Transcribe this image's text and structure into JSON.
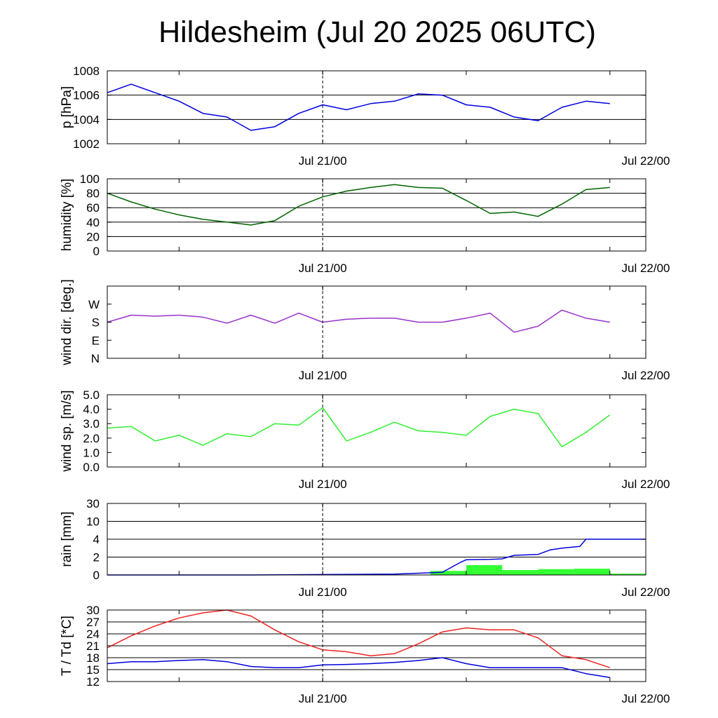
{
  "title": "Hildesheim (Jul 20 2025 06UTC)",
  "x_tick_labels": [
    "Jul 21/00",
    "Jul 22/00"
  ],
  "chart_data": [
    {
      "type": "line",
      "ylabel": "p [hPa]",
      "ylim": [
        1002,
        1008
      ],
      "yticks": [
        1002,
        1004,
        1006,
        1008
      ],
      "grid": true,
      "x": [
        "Jul 20 06:00",
        "Jul 20 08:00",
        "Jul 20 10:00",
        "Jul 20 12:00",
        "Jul 20 14:00",
        "Jul 20 16:00",
        "Jul 20 18:00",
        "Jul 20 20:00",
        "Jul 20 22:00",
        "Jul 21 00:00",
        "Jul 21 02:00",
        "Jul 21 04:00",
        "Jul 21 06:00",
        "Jul 21 08:00",
        "Jul 21 10:00",
        "Jul 21 12:00",
        "Jul 21 14:00",
        "Jul 21 16:00",
        "Jul 21 18:00",
        "Jul 21 20:00",
        "Jul 21 22:00",
        "Jul 22 00:00"
      ],
      "series": [
        {
          "color": "#0000dd",
          "values": [
            1006.2,
            1006.9,
            1006.2,
            1005.5,
            1004.5,
            1004.2,
            1003.1,
            1003.4,
            1004.5,
            1005.2,
            1004.8,
            1005.3,
            1005.5,
            1006.1,
            1006.0,
            1005.2,
            1005.0,
            1004.2,
            1003.9,
            1005.0,
            1005.5,
            1005.3
          ]
        }
      ]
    },
    {
      "type": "line",
      "ylabel": "humidity [%]",
      "ylim": [
        0,
        100
      ],
      "yticks": [
        0,
        20,
        40,
        60,
        80,
        100
      ],
      "grid": true,
      "x": [
        "Jul 20 06:00",
        "Jul 20 08:00",
        "Jul 20 10:00",
        "Jul 20 12:00",
        "Jul 20 14:00",
        "Jul 20 16:00",
        "Jul 20 18:00",
        "Jul 20 20:00",
        "Jul 20 22:00",
        "Jul 21 00:00",
        "Jul 21 02:00",
        "Jul 21 04:00",
        "Jul 21 06:00",
        "Jul 21 08:00",
        "Jul 21 10:00",
        "Jul 21 12:00",
        "Jul 21 14:00",
        "Jul 21 16:00",
        "Jul 21 18:00",
        "Jul 21 20:00",
        "Jul 21 22:00",
        "Jul 22 00:00"
      ],
      "series": [
        {
          "color": "#006400",
          "values": [
            80,
            68,
            58,
            50,
            44,
            40,
            36,
            42,
            62,
            75,
            83,
            88,
            92,
            88,
            87,
            70,
            52,
            54,
            48,
            65,
            85,
            88
          ]
        }
      ]
    },
    {
      "type": "line",
      "ylabel": "wind dir. [deg.]",
      "ylim": [
        0,
        360
      ],
      "yticks": [
        0,
        90,
        180,
        270
      ],
      "ytick_labels": [
        "N",
        "E",
        "S",
        "W"
      ],
      "grid": false,
      "x": [
        "Jul 20 06:00",
        "Jul 20 08:00",
        "Jul 20 10:00",
        "Jul 20 12:00",
        "Jul 20 14:00",
        "Jul 20 16:00",
        "Jul 20 18:00",
        "Jul 20 20:00",
        "Jul 20 22:00",
        "Jul 21 00:00",
        "Jul 21 02:00",
        "Jul 21 04:00",
        "Jul 21 06:00",
        "Jul 21 08:00",
        "Jul 21 10:00",
        "Jul 21 12:00",
        "Jul 21 14:00",
        "Jul 21 16:00",
        "Jul 21 18:00",
        "Jul 21 20:00",
        "Jul 21 22:00",
        "Jul 22 00:00"
      ],
      "series": [
        {
          "color": "#9932cc",
          "values": [
            180,
            215,
            210,
            215,
            205,
            175,
            215,
            175,
            225,
            180,
            195,
            200,
            200,
            180,
            180,
            200,
            225,
            130,
            160,
            240,
            200,
            180
          ]
        }
      ]
    },
    {
      "type": "line",
      "ylabel": "wind sp. [m/s]",
      "ylim": [
        0,
        5
      ],
      "yticks": [
        0.0,
        1.0,
        2.0,
        3.0,
        4.0,
        5.0
      ],
      "ytick_labels": [
        "0.0",
        "1.0",
        "2.0",
        "3.0",
        "4.0",
        "5.0"
      ],
      "grid": false,
      "x": [
        "Jul 20 06:00",
        "Jul 20 08:00",
        "Jul 20 10:00",
        "Jul 20 12:00",
        "Jul 20 14:00",
        "Jul 20 16:00",
        "Jul 20 18:00",
        "Jul 20 20:00",
        "Jul 20 22:00",
        "Jul 21 00:00",
        "Jul 21 02:00",
        "Jul 21 04:00",
        "Jul 21 06:00",
        "Jul 21 08:00",
        "Jul 21 10:00",
        "Jul 21 12:00",
        "Jul 21 14:00",
        "Jul 21 16:00",
        "Jul 21 18:00",
        "Jul 21 20:00",
        "Jul 21 22:00",
        "Jul 22 00:00"
      ],
      "series": [
        {
          "color": "#33ee33",
          "values": [
            2.7,
            2.8,
            1.8,
            2.2,
            1.5,
            2.3,
            2.1,
            3.0,
            2.9,
            4.1,
            1.8,
            2.4,
            3.1,
            2.5,
            2.4,
            2.2,
            3.5,
            4.0,
            3.7,
            1.4,
            2.4,
            3.6
          ]
        }
      ]
    },
    {
      "type": "bar+line",
      "ylabel": "rain [mm]",
      "yticks": [
        0,
        2,
        4,
        10,
        30
      ],
      "ytick_labels": [
        "0",
        "2",
        "4",
        "10",
        "30"
      ],
      "grid": true,
      "bars": {
        "color": "#33ff33",
        "intervals": [
          {
            "start": "Jul 21 09:00",
            "end": "Jul 21 12:00",
            "value": 0.45
          },
          {
            "start": "Jul 21 12:00",
            "end": "Jul 21 15:00",
            "value": 1.1
          },
          {
            "start": "Jul 21 15:00",
            "end": "Jul 21 18:00",
            "value": 0.55
          },
          {
            "start": "Jul 21 18:00",
            "end": "Jul 21 21:00",
            "value": 0.65
          },
          {
            "start": "Jul 21 21:00",
            "end": "Jul 22 00:00",
            "value": 0.7
          },
          {
            "start": "Jul 22 00:00",
            "end": "Jul 22 03:00",
            "value": 0.15
          }
        ]
      },
      "series": [
        {
          "color": "#0000dd",
          "x": [
            "Jul 20 06:00",
            "Jul 20 18:00",
            "Jul 21 00:00",
            "Jul 21 06:00",
            "Jul 21 10:00",
            "Jul 21 11:30",
            "Jul 21 12:00",
            "Jul 21 14:00",
            "Jul 21 15:00",
            "Jul 21 16:00",
            "Jul 21 18:00",
            "Jul 21 19:00",
            "Jul 21 20:00",
            "Jul 21 21:30",
            "Jul 21 22:00",
            "Jul 22 03:00"
          ],
          "values": [
            0,
            0,
            0.05,
            0.1,
            0.3,
            1.4,
            1.7,
            1.75,
            1.8,
            2.2,
            2.3,
            2.8,
            3.0,
            3.2,
            4.0,
            4.0
          ]
        }
      ]
    },
    {
      "type": "line",
      "ylabel": "T / Td [*C]",
      "ylim": [
        12,
        30
      ],
      "yticks": [
        12,
        15,
        18,
        21,
        24,
        27,
        30
      ],
      "grid": true,
      "x": [
        "Jul 20 06:00",
        "Jul 20 08:00",
        "Jul 20 10:00",
        "Jul 20 12:00",
        "Jul 20 14:00",
        "Jul 20 16:00",
        "Jul 20 18:00",
        "Jul 20 20:00",
        "Jul 20 22:00",
        "Jul 21 00:00",
        "Jul 21 02:00",
        "Jul 21 04:00",
        "Jul 21 06:00",
        "Jul 21 08:00",
        "Jul 21 10:00",
        "Jul 21 12:00",
        "Jul 21 14:00",
        "Jul 21 16:00",
        "Jul 21 18:00",
        "Jul 21 20:00",
        "Jul 21 22:00",
        "Jul 22 00:00"
      ],
      "series": [
        {
          "color": "#ee2222",
          "values": [
            20.5,
            23.5,
            26.0,
            28.0,
            29.3,
            30.0,
            28.5,
            25.0,
            22.0,
            20.0,
            19.5,
            18.5,
            19.0,
            21.5,
            24.5,
            25.5,
            25.0,
            25.0,
            23.0,
            18.5,
            17.5,
            15.5
          ]
        },
        {
          "color": "#0000dd",
          "values": [
            16.5,
            17.0,
            17.0,
            17.3,
            17.5,
            17.0,
            15.8,
            15.5,
            15.5,
            16.2,
            16.3,
            16.5,
            16.8,
            17.3,
            18.0,
            16.5,
            15.5,
            15.5,
            15.5,
            15.5,
            14.0,
            13.0
          ]
        }
      ]
    }
  ]
}
